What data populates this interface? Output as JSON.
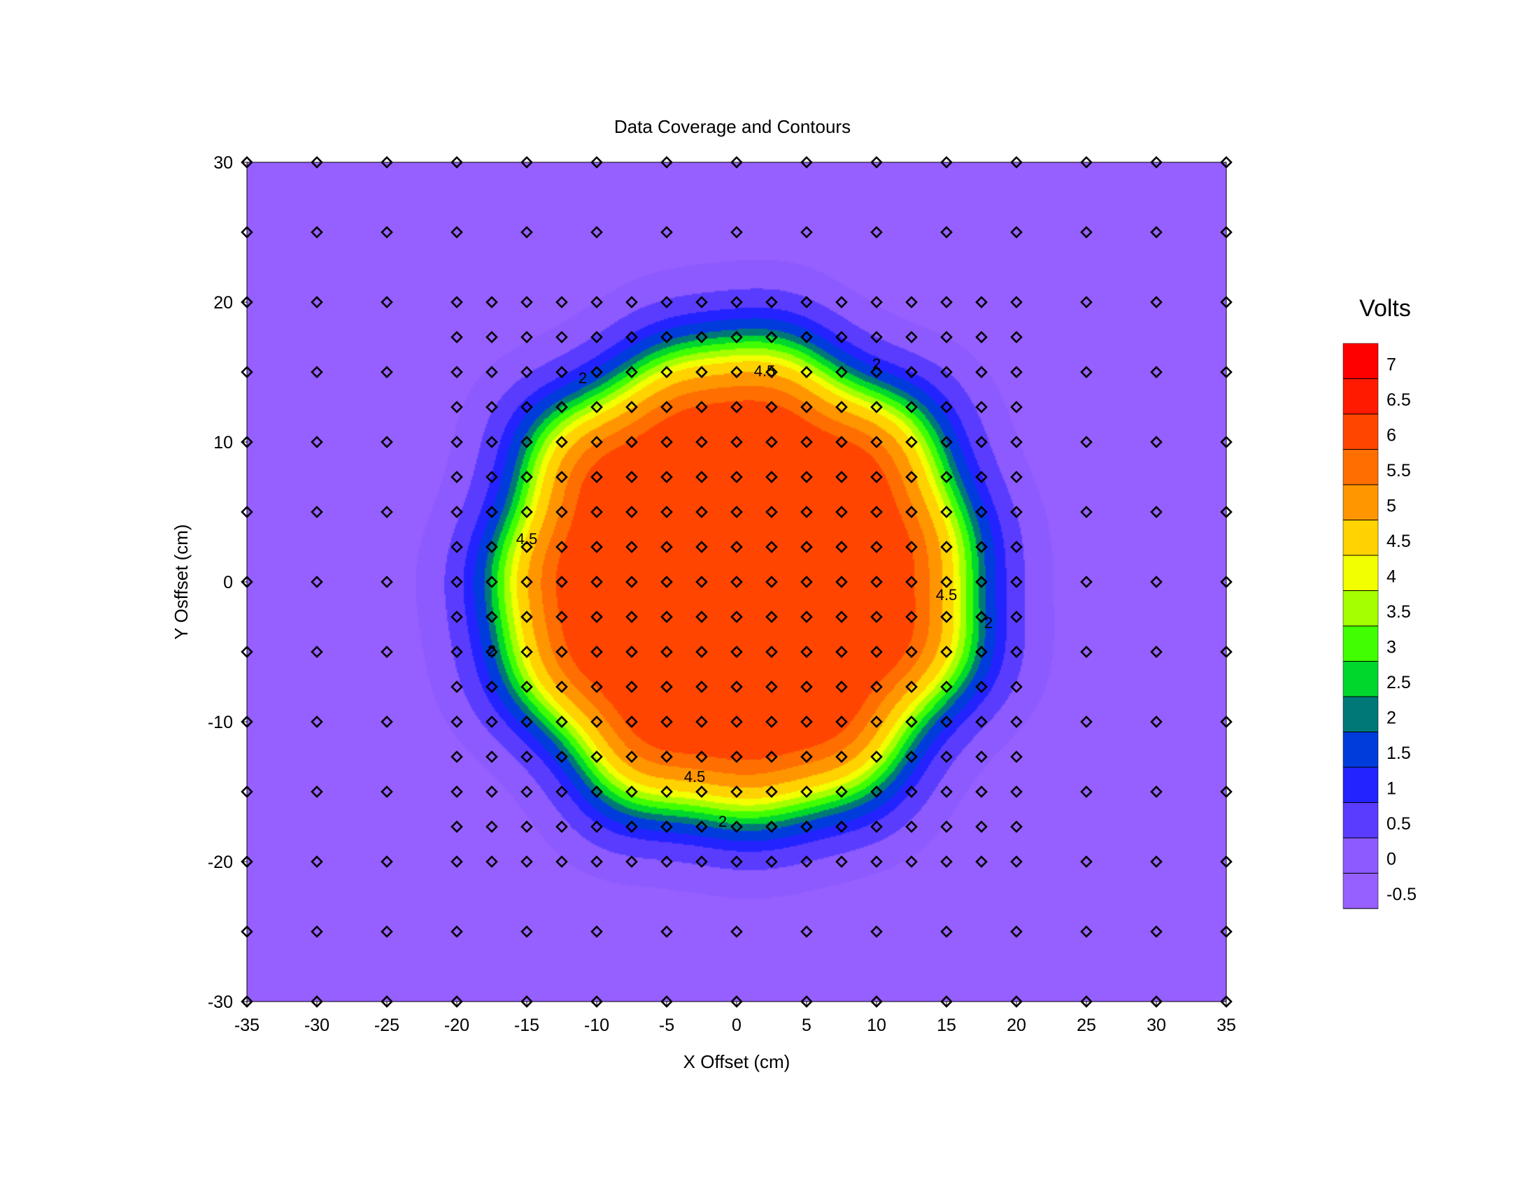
{
  "chart_data": {
    "type": "heatmap",
    "title": "Data Coverage and Contours",
    "xlabel": "X Offset (cm)",
    "ylabel": "Y Osffset (cm)",
    "xlim": [
      -35,
      35
    ],
    "ylim": [
      -30,
      30
    ],
    "x_ticks": [
      -35,
      -30,
      -25,
      -20,
      -15,
      -10,
      -5,
      0,
      5,
      10,
      15,
      20,
      25,
      30,
      35
    ],
    "y_ticks": [
      30,
      20,
      10,
      0,
      -10,
      -20,
      -30
    ],
    "x_tick_labels": [
      "-35",
      "-30",
      "-25",
      "-20",
      "-15",
      "-10",
      "-5",
      "0",
      "5",
      "10",
      "15",
      "20",
      "25",
      "30",
      "35"
    ],
    "y_tick_labels": [
      "30",
      "20",
      "10",
      "0",
      "-10",
      "-20",
      "-30"
    ],
    "colorbar": {
      "title": "Volts",
      "levels": [
        7,
        6.5,
        6,
        5.5,
        5,
        4.5,
        4,
        3.5,
        3,
        2.5,
        2,
        1.5,
        1,
        0.5,
        0,
        -0.5
      ],
      "labels": [
        "7",
        "6.5",
        "6",
        "5.5",
        "5",
        "4.5",
        "4",
        "3.5",
        "3",
        "2.5",
        "2",
        "1.5",
        "1",
        "0.5",
        "0",
        "-0.5"
      ],
      "colors": [
        "#ff0000",
        "#ff1a00",
        "#ff4500",
        "#ff6e00",
        "#ff9600",
        "#ffd200",
        "#f2ff00",
        "#a5ff00",
        "#41ff00",
        "#00d72d",
        "#007878",
        "#003cdc",
        "#2323ff",
        "#5a3cff",
        "#8c5aff",
        "#965fff"
      ]
    },
    "field_model": {
      "shape": "circular",
      "center": [
        0,
        0
      ],
      "peak_volts": 6.2,
      "background_volts": -0.3,
      "contour_radius_4_5": 15.6,
      "contour_radius_2": 17.9,
      "outer_edge_radius": 23
    },
    "contour_labels": [
      {
        "text": "4.5",
        "x": 2,
        "y": 15
      },
      {
        "text": "2",
        "x": -11,
        "y": 14.5
      },
      {
        "text": "2",
        "x": 10,
        "y": 15.5
      },
      {
        "text": "4.5",
        "x": -15,
        "y": 3
      },
      {
        "text": "4.5",
        "x": 15,
        "y": -1
      },
      {
        "text": "2",
        "x": 18,
        "y": -3
      },
      {
        "text": "2",
        "x": -17.5,
        "y": -5
      },
      {
        "text": "4.5",
        "x": -3,
        "y": -14
      },
      {
        "text": "2",
        "x": -1,
        "y": -17.2
      }
    ],
    "measurement_points": {
      "coarse_x": [
        -35,
        -30,
        -25,
        -20,
        -15,
        -10,
        -5,
        0,
        5,
        10,
        15,
        20,
        25,
        30,
        35
      ],
      "coarse_y": [
        30,
        25,
        20,
        15,
        10,
        5,
        0,
        -5,
        -10,
        -15,
        -20,
        -25,
        -30
      ],
      "fine_x_range": [
        -20,
        20
      ],
      "fine_y_range": [
        -20,
        20
      ],
      "fine_step": 2.5
    },
    "legend": "right",
    "grid": false
  }
}
